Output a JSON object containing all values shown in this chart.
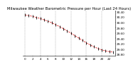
{
  "title": "Milwaukee Weather Barometric Pressure per Hour (Last 24 Hours)",
  "x_values": [
    0,
    1,
    2,
    3,
    4,
    5,
    6,
    7,
    8,
    9,
    10,
    11,
    12,
    13,
    14,
    15,
    16,
    17,
    18,
    19,
    20,
    21,
    22,
    23
  ],
  "y_values": [
    30.28,
    30.25,
    30.22,
    30.18,
    30.14,
    30.09,
    30.04,
    29.98,
    29.91,
    29.84,
    29.76,
    29.68,
    29.59,
    29.5,
    29.41,
    29.32,
    29.23,
    29.15,
    29.08,
    29.02,
    28.97,
    28.93,
    28.9,
    28.88
  ],
  "line_color": "#dd0000",
  "marker_color": "#000000",
  "bg_color": "#ffffff",
  "grid_color": "#999999",
  "ylim_min": 28.75,
  "ylim_max": 30.45,
  "title_fontsize": 3.8,
  "tick_fontsize": 3.0,
  "ytick_labels": [
    "28.80",
    "29.00",
    "29.20",
    "29.40",
    "29.60",
    "29.80",
    "30.00",
    "30.20",
    "30.40"
  ],
  "ytick_values": [
    28.8,
    29.0,
    29.2,
    29.4,
    29.6,
    29.8,
    30.0,
    30.2,
    30.4
  ],
  "xtick_values": [
    0,
    2,
    4,
    6,
    8,
    10,
    12,
    14,
    16,
    18,
    20,
    22
  ],
  "xtick_labels": [
    "0",
    "2",
    "4",
    "6",
    "8",
    "10",
    "12",
    "14",
    "16",
    "18",
    "20",
    "22"
  ],
  "grid_x_positions": [
    0,
    4,
    8,
    12,
    16,
    20
  ]
}
